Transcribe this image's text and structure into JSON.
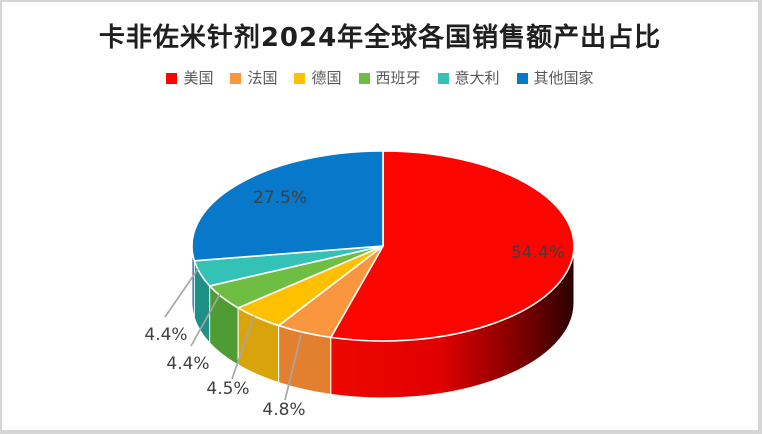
{
  "chart_data": {
    "type": "pie",
    "style": "3d",
    "title": "卡非佐米针剂2024年全球各国销售额产出占比",
    "categories": [
      "美国",
      "法国",
      "德国",
      "西班牙",
      "意大利",
      "其他国家"
    ],
    "values": [
      54.4,
      4.8,
      4.5,
      4.4,
      4.4,
      27.5
    ],
    "labels": [
      "54.4%",
      "4.8%",
      "4.5%",
      "4.4%",
      "4.4%",
      "27.5%"
    ],
    "unit": "%",
    "start_angle_deg": 0,
    "direction": "clockwise",
    "legend_position": "top",
    "colors": [
      "#fb0500",
      "#f9963e",
      "#ffc000",
      "#6fbe44",
      "#35c2b6",
      "#0878ca"
    ],
    "side_colors": [
      "#c00000",
      "#e2802f",
      "#d9a40b",
      "#4e9c33",
      "#1d9087",
      "#0b5e9d"
    ],
    "red_side_gradient": [
      "#ee0700",
      "#e00000",
      "#6f0000",
      "#2a0000"
    ],
    "label_color": "#404040",
    "leader_line_color": "#a6a6a6",
    "title_color": "#1f1f1f",
    "legend_text_color": "#595959",
    "background_color": "#ffffff",
    "border_color": "#d6d6d6"
  }
}
